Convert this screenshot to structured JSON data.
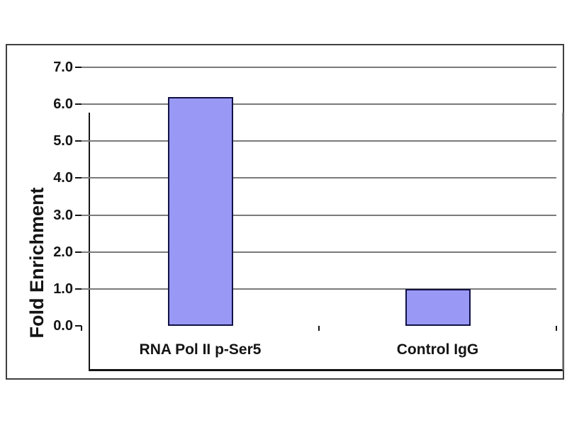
{
  "chart_data": {
    "type": "bar",
    "categories": [
      "RNA Pol II p-Ser5",
      "Control IgG"
    ],
    "values": [
      6.2,
      1.0
    ],
    "title": "",
    "xlabel": "",
    "ylabel": "Fold Enrichment",
    "ylim": [
      0.0,
      7.0
    ],
    "ytick_step": 1.0,
    "ytick_labels": [
      "0.0",
      "1.0",
      "2.0",
      "3.0",
      "4.0",
      "5.0",
      "6.0",
      "7.0"
    ],
    "grid": true,
    "legend": "none",
    "colors": {
      "bar_fill": "#9999f5",
      "bar_border": "#101045",
      "gridline": "#7a7a7a",
      "axis": "#141414",
      "frame": "#3f3f3f",
      "text": "#141414",
      "background": "#ffffff"
    }
  }
}
